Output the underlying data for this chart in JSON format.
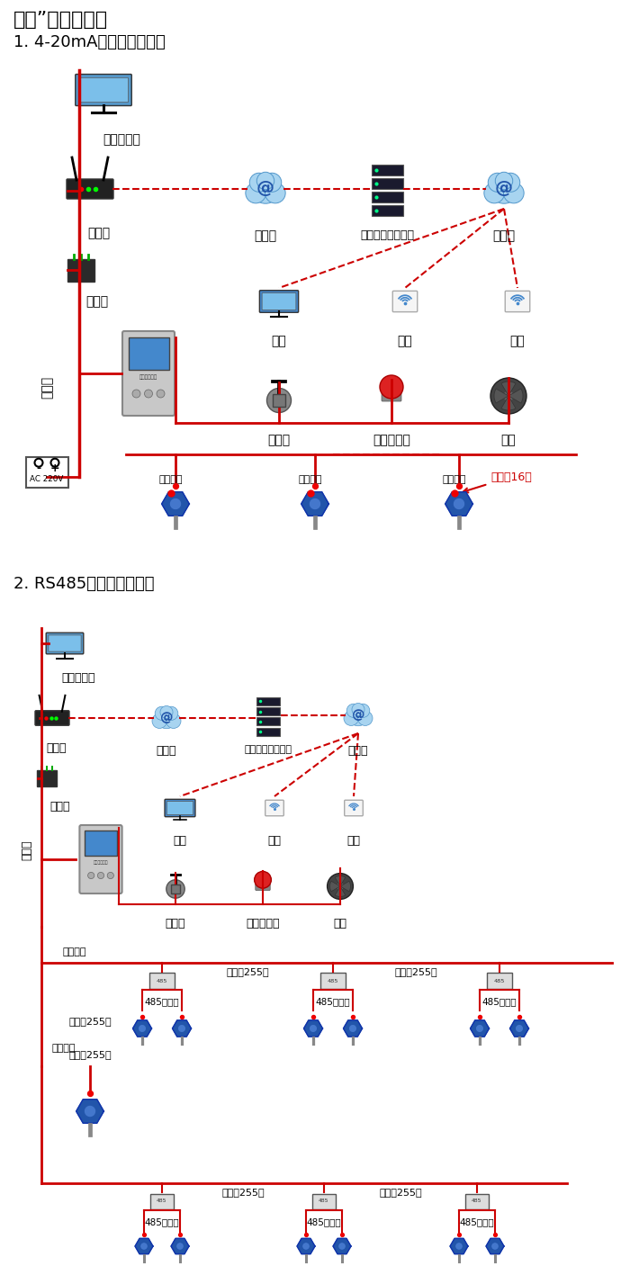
{
  "title1": "大众”系列报警器",
  "subtitle1": "1. 4-20mA信号连接系统图",
  "subtitle2": "2. RS485信号连接系统图",
  "bg_color": "#ffffff",
  "text_color": "#000000",
  "red": "#cc0000",
  "label_dandianji": "单机版电脑",
  "label_luyouqi": "路由器",
  "label_hulianwang": "互联网",
  "label_zhuanhuanqi": "转换器",
  "label_anpuer": "安帖尔网络服务器",
  "label_diannao": "电脑",
  "label_shouji": "手机",
  "label_zhongduan": "终端",
  "label_tongxunxian": "通讯线",
  "label_diancifa": "电磁阀",
  "label_shengguang": "声光报警器",
  "label_fengji": "风机",
  "label_ac220v": "AC 220V",
  "label_xinhaoshuchu": "信号输出",
  "label_kelanjie16": "可连接16个",
  "label_485zhongji": "485中继器",
  "label_kelanjie255": "可连接255台",
  "label_baojing": "报警控制主机"
}
